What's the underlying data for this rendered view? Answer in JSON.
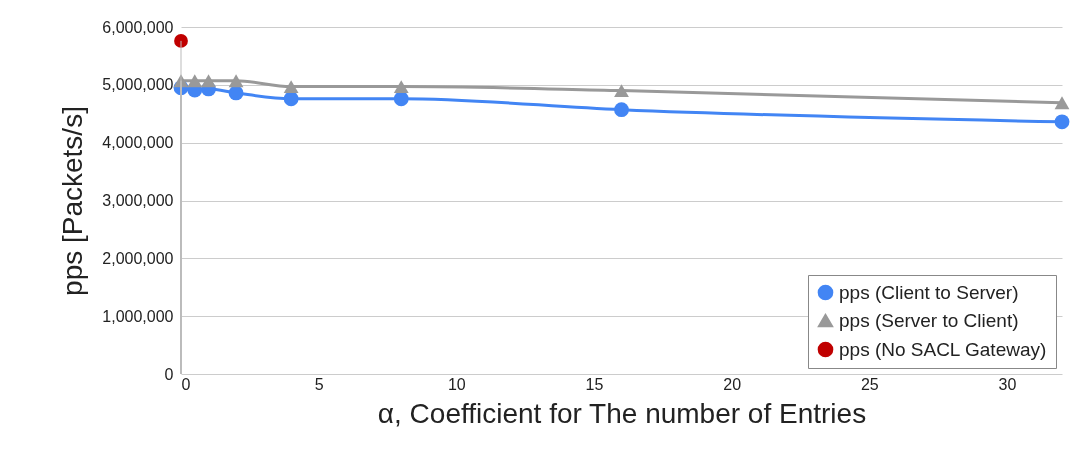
{
  "chart_data": {
    "type": "line",
    "xlabel": "α, Coefficient for The number of Entries",
    "ylabel": "pps [Packets/s]",
    "xlim": [
      0,
      32
    ],
    "xticks": [
      0,
      5,
      10,
      15,
      20,
      25,
      30
    ],
    "ylim": [
      0,
      6000000
    ],
    "yticks": [
      0,
      {
        "value": 1000000,
        "label": "1,000,000"
      },
      {
        "value": 2000000,
        "label": "2,000,000"
      },
      {
        "value": 3000000,
        "label": "3,000,000"
      },
      {
        "value": 4000000,
        "label": "4,000,000"
      },
      {
        "value": 5000000,
        "label": "5,000,000"
      },
      {
        "value": 6000000,
        "label": "6,000,000"
      }
    ],
    "grid": "y",
    "legend": "bottom right",
    "series": [
      {
        "name": "pps (Client to Server)",
        "color": "#4285f4",
        "marker": "circle",
        "x": [
          0,
          0.5,
          1,
          2,
          4,
          8,
          16,
          32
        ],
        "values": [
          4950000,
          4910000,
          4930000,
          4860000,
          4760000,
          4760000,
          4570000,
          4360000
        ]
      },
      {
        "name": "pps (Server to Client)",
        "color": "#999999",
        "marker": "triangle",
        "x": [
          0,
          0.5,
          1,
          2,
          4,
          8,
          16,
          32
        ],
        "values": [
          5070000,
          5070000,
          5070000,
          5070000,
          4970000,
          4970000,
          4900000,
          4690000
        ]
      },
      {
        "name": "pps (No SACL Gateway)",
        "type": "scatter",
        "color": "#c00000",
        "marker": "circle",
        "x": [
          0
        ],
        "values": [
          5760000
        ]
      }
    ]
  }
}
